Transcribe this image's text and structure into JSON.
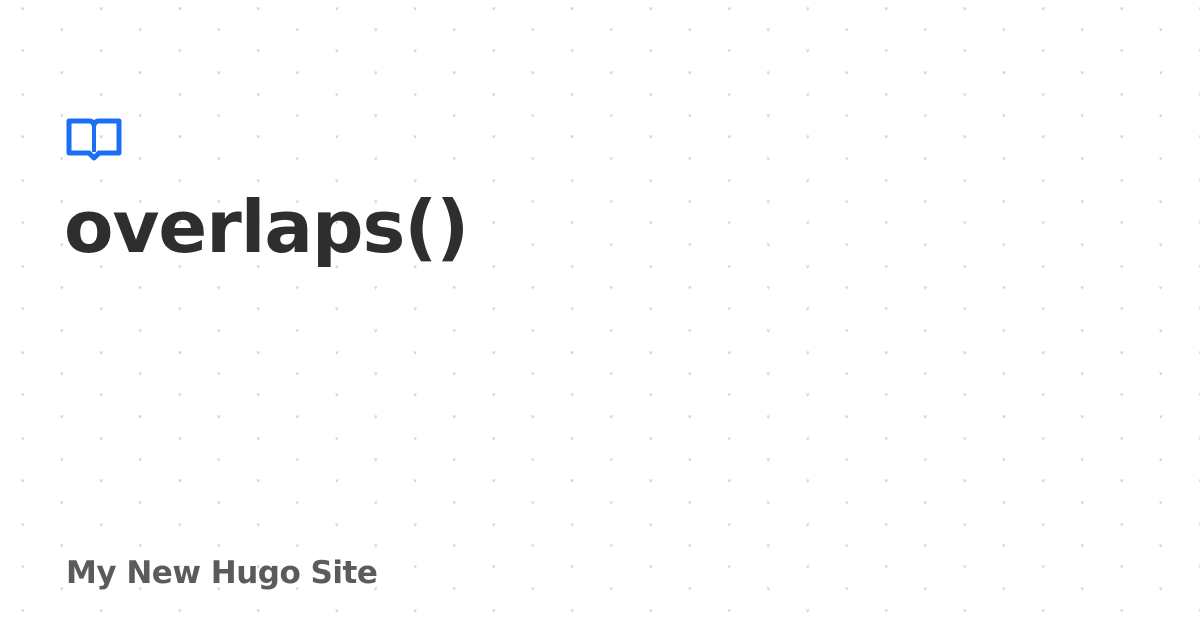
{
  "card": {
    "logo_icon": "open-book-icon",
    "title": "overlaps()",
    "site_name": "My New Hugo Site"
  },
  "colors": {
    "background": "#ffffff",
    "accent": "#1a6ff5",
    "title": "#2e2e2e",
    "site_name": "#5b5b5b",
    "pattern": "#d4d4d4"
  }
}
